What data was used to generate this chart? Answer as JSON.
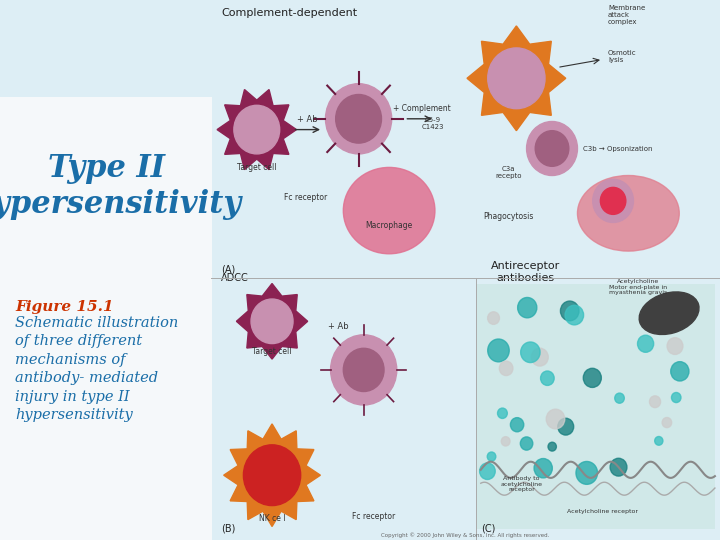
{
  "bg_color": "#ddeef5",
  "title_text": "Type II\nhypersensitivity",
  "title_color": "#1a6ea8",
  "title_fontsize": 22,
  "figure_label": "Figure 15.1",
  "figure_label_color": "#cc3300",
  "figure_label_fontsize": 11,
  "caption_text": "Schematic illustration\nof three different\nmechanisms of\nantibody- mediated\ninjury in type II\nhypersensitivity",
  "caption_color": "#1a6ea8",
  "caption_fontsize": 10.5,
  "arc_color": "#5bbfcf",
  "panel_bg": "#ffffff"
}
